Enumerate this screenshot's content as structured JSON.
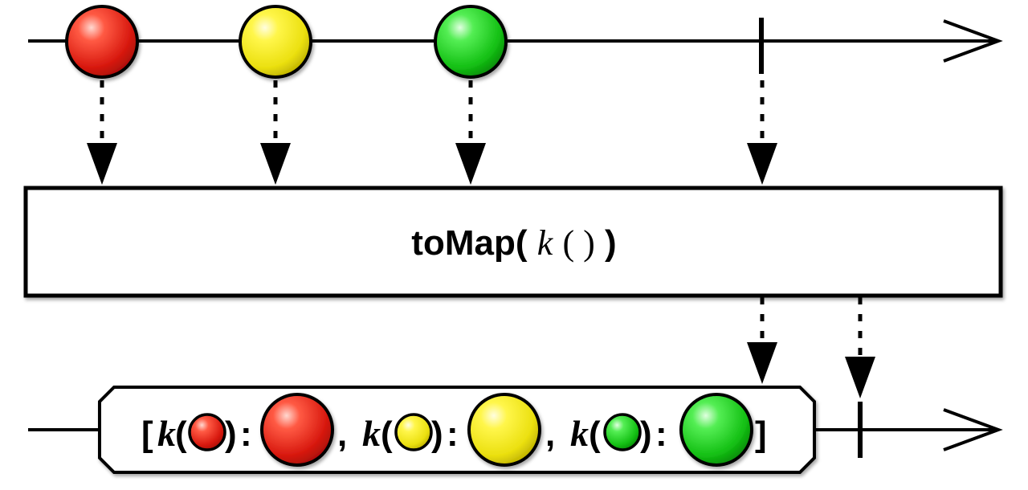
{
  "operator": {
    "name": "toMap(",
    "fn": "k",
    "fn_parens": "( )",
    "close": ")"
  },
  "input_stream": {
    "items": [
      {
        "color": "red",
        "fill": "#e3231e"
      },
      {
        "color": "yellow",
        "fill": "#f2ec1a"
      },
      {
        "color": "green",
        "fill": "#1fcc1f"
      }
    ],
    "completes": true
  },
  "output_stream": {
    "result": {
      "open_bracket": "[",
      "close_bracket": "]",
      "key_fn": "k",
      "open_paren": "(",
      "close_paren": ")",
      "colon": ":",
      "separator": ",",
      "entries": [
        {
          "color": "red"
        },
        {
          "color": "yellow"
        },
        {
          "color": "green"
        }
      ]
    },
    "completes": true
  },
  "colors": {
    "red": "#e3231e",
    "yellow": "#f2ec1a",
    "green": "#1fcc1f",
    "line": "#000000",
    "box_fill": "#ffffff"
  }
}
